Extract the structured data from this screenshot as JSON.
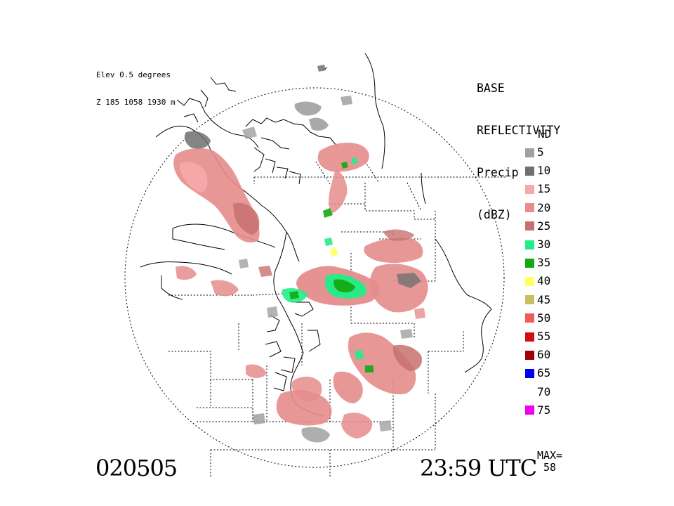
{
  "header": {
    "elevation": "Elev 0.5 degrees",
    "zone": "Z 185 1058 1930 m"
  },
  "product": {
    "line1": "BASE",
    "line2": "REFLECTIVITY",
    "line3": "Precip",
    "line4": "(dBZ)"
  },
  "legend": {
    "nd_label": "ND",
    "items": [
      {
        "label": "5",
        "color": "#a0a0a0"
      },
      {
        "label": "10",
        "color": "#707070"
      },
      {
        "label": "15",
        "color": "#f5aaaa"
      },
      {
        "label": "20",
        "color": "#e68c8c"
      },
      {
        "label": "25",
        "color": "#c87070"
      },
      {
        "label": "30",
        "color": "#22ee88"
      },
      {
        "label": "35",
        "color": "#11aa11"
      },
      {
        "label": "40",
        "color": "#ffff66"
      },
      {
        "label": "45",
        "color": "#c8c060"
      },
      {
        "label": "50",
        "color": "#f05a5a"
      },
      {
        "label": "55",
        "color": "#d01010"
      },
      {
        "label": "60",
        "color": "#a00000"
      },
      {
        "label": "65",
        "color": "#0000ee"
      },
      {
        "label": "70",
        "color": ""
      },
      {
        "label": "75",
        "color": "#ee00ee"
      }
    ]
  },
  "footer": {
    "date": "020505",
    "time": "23:59 UTC",
    "max_label": "MAX=",
    "max_value": "58"
  }
}
